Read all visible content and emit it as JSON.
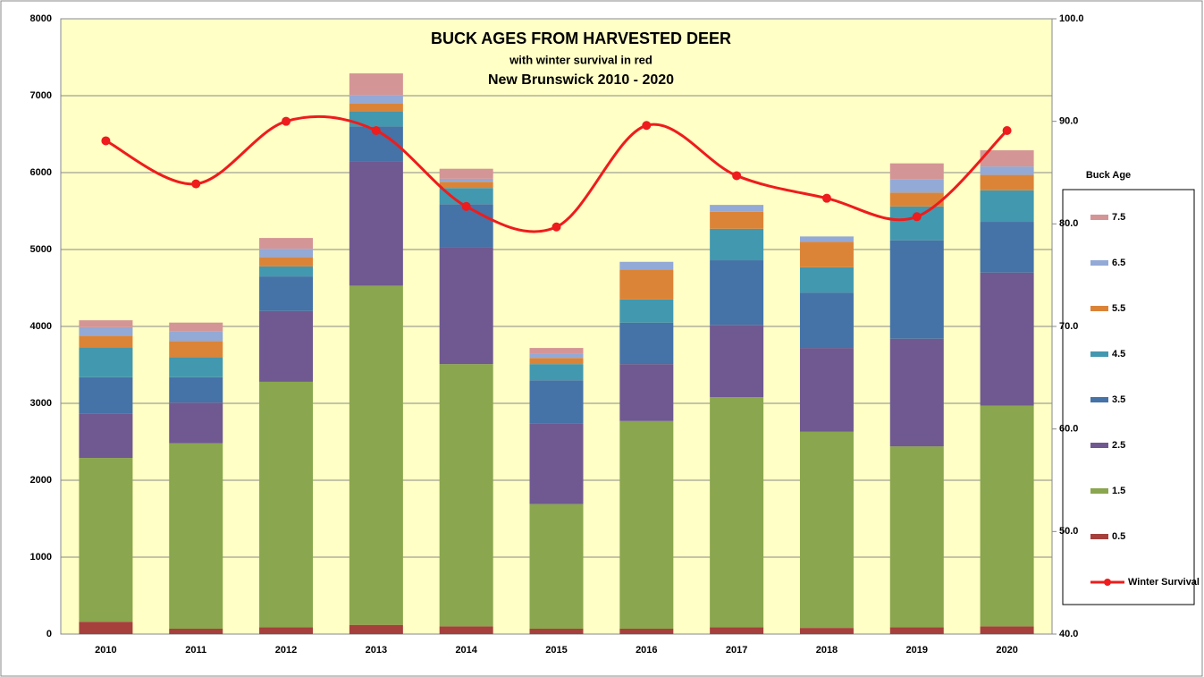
{
  "chart_data": {
    "type": "bar",
    "stacked": true,
    "title": "BUCK AGES FROM HARVESTED DEER",
    "subtitle": "with winter survival in red",
    "subtitle2": "New Brunswick 2010 - 2020",
    "legend_title": "Buck Age",
    "legend": "right",
    "grid": true,
    "categories": [
      "2010",
      "2011",
      "2012",
      "2013",
      "2014",
      "2015",
      "2016",
      "2017",
      "2018",
      "2019",
      "2020"
    ],
    "ylim": [
      0,
      8000
    ],
    "yticks": [
      0,
      1000,
      2000,
      3000,
      4000,
      5000,
      6000,
      7000,
      8000
    ],
    "y2lim": [
      40,
      100
    ],
    "y2ticks": [
      {
        "value": 40,
        "label": "40.0"
      },
      {
        "value": 50,
        "label": "50.0"
      },
      {
        "value": 60,
        "label": "60.0"
      },
      {
        "value": 70,
        "label": "70.0"
      },
      {
        "value": 80,
        "label": "80.0"
      },
      {
        "value": 90,
        "label": "90.0"
      },
      {
        "value": 100,
        "label": "100.0"
      }
    ],
    "series": [
      {
        "name": "0.5",
        "color": "#a5403d",
        "values": [
          160,
          70,
          90,
          120,
          100,
          70,
          70,
          90,
          80,
          90,
          100
        ]
      },
      {
        "name": "1.5",
        "color": "#8aa64e",
        "values": [
          2130,
          2410,
          3190,
          4410,
          3410,
          1620,
          2700,
          2990,
          2550,
          2350,
          2870
        ]
      },
      {
        "name": "2.5",
        "color": "#6f5990",
        "values": [
          580,
          530,
          920,
          1620,
          1520,
          1050,
          740,
          940,
          1090,
          1400,
          1730
        ]
      },
      {
        "name": "3.5",
        "color": "#4572a7",
        "values": [
          470,
          330,
          450,
          450,
          560,
          560,
          540,
          840,
          720,
          1280,
          660
        ]
      },
      {
        "name": "4.5",
        "color": "#4298af",
        "values": [
          390,
          260,
          130,
          200,
          210,
          210,
          300,
          410,
          330,
          440,
          410
        ]
      },
      {
        "name": "5.5",
        "color": "#db8438",
        "values": [
          150,
          210,
          120,
          100,
          80,
          80,
          390,
          220,
          330,
          180,
          200
        ]
      },
      {
        "name": "6.5",
        "color": "#93a9d6",
        "values": [
          110,
          130,
          110,
          110,
          40,
          60,
          100,
          90,
          70,
          170,
          110
        ]
      },
      {
        "name": "7.5",
        "color": "#d49596",
        "values": [
          90,
          110,
          140,
          280,
          130,
          70,
          0,
          0,
          0,
          210,
          210
        ]
      },
      {
        "name": "Winter Survival",
        "type": "line",
        "axis": "y2",
        "color": "#ee1c1c",
        "values": [
          88.1,
          83.9,
          90.0,
          89.1,
          81.7,
          79.7,
          89.6,
          84.7,
          82.5,
          80.7,
          89.1
        ]
      }
    ]
  }
}
